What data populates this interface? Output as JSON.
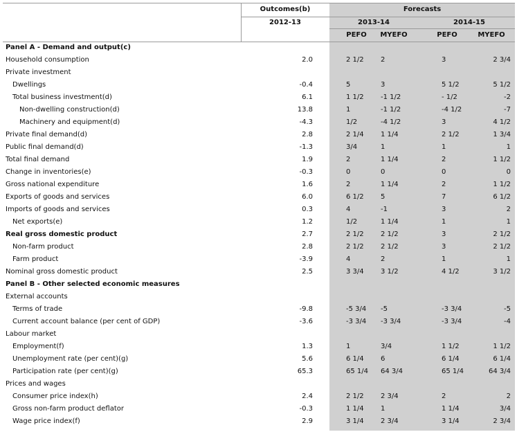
{
  "header": {
    "outcomes_label": "Outcomes(b)",
    "forecasts_label": "Forecasts",
    "year_outcome": "2012-13",
    "year_1": "2013-14",
    "year_2": "2014-15",
    "pefo": "PEFO",
    "myefo": "MYEFO"
  },
  "rows": [
    {
      "label": "Panel A - Demand and output(c)",
      "indent": 0,
      "bold": true,
      "outcome": "",
      "f13_pefo": "",
      "f13_myefo": "",
      "f14_pefo": "",
      "f14_myefo": ""
    },
    {
      "label": "Household consumption",
      "indent": 0,
      "bold": false,
      "outcome": "2.0",
      "f13_pefo": "2 1/2",
      "f13_myefo": "2",
      "f14_pefo": "3",
      "f14_myefo": "2 3/4"
    },
    {
      "label": "Private investment",
      "indent": 0,
      "bold": false,
      "outcome": "",
      "f13_pefo": "",
      "f13_myefo": "",
      "f14_pefo": "",
      "f14_myefo": ""
    },
    {
      "label": "Dwellings",
      "indent": 1,
      "bold": false,
      "outcome": "-0.4",
      "f13_pefo": "5",
      "f13_myefo": "3",
      "f14_pefo": "5 1/2",
      "f14_myefo": "5 1/2"
    },
    {
      "label": "Total business investment(d)",
      "indent": 1,
      "bold": false,
      "outcome": "6.1",
      "f13_pefo": "1 1/2",
      "f13_myefo": "-1 1/2",
      "f14_pefo": "- 1/2",
      "f14_myefo": "-2"
    },
    {
      "label": "Non-dwelling construction(d)",
      "indent": 2,
      "bold": false,
      "outcome": "13.8",
      "f13_pefo": "1",
      "f13_myefo": "-1 1/2",
      "f14_pefo": "-4 1/2",
      "f14_myefo": "-7"
    },
    {
      "label": "Machinery and equipment(d)",
      "indent": 2,
      "bold": false,
      "outcome": "-4.3",
      "f13_pefo": "1/2",
      "f13_myefo": "-4 1/2",
      "f14_pefo": "3",
      "f14_myefo": "4 1/2"
    },
    {
      "label": "Private final demand(d)",
      "indent": 0,
      "bold": false,
      "outcome": "2.8",
      "f13_pefo": "2 1/4",
      "f13_myefo": "1 1/4",
      "f14_pefo": "2 1/2",
      "f14_myefo": "1 3/4"
    },
    {
      "label": "Public final demand(d)",
      "indent": 0,
      "bold": false,
      "outcome": "-1.3",
      "f13_pefo": "3/4",
      "f13_myefo": "1",
      "f14_pefo": "1",
      "f14_myefo": "1"
    },
    {
      "label": "Total final demand",
      "indent": 0,
      "bold": false,
      "outcome": "1.9",
      "f13_pefo": "2",
      "f13_myefo": "1 1/4",
      "f14_pefo": "2",
      "f14_myefo": "1 1/2"
    },
    {
      "label": "Change in inventories(e)",
      "indent": 0,
      "bold": false,
      "outcome": "-0.3",
      "f13_pefo": "0",
      "f13_myefo": "0",
      "f14_pefo": "0",
      "f14_myefo": "0"
    },
    {
      "label": "Gross national expenditure",
      "indent": 0,
      "bold": false,
      "outcome": "1.6",
      "f13_pefo": "2",
      "f13_myefo": "1 1/4",
      "f14_pefo": "2",
      "f14_myefo": "1 1/2"
    },
    {
      "label": "Exports of goods and services",
      "indent": 0,
      "bold": false,
      "outcome": "6.0",
      "f13_pefo": "6 1/2",
      "f13_myefo": "5",
      "f14_pefo": "7",
      "f14_myefo": "6 1/2"
    },
    {
      "label": "Imports of goods and services",
      "indent": 0,
      "bold": false,
      "outcome": "0.3",
      "f13_pefo": "4",
      "f13_myefo": "-1",
      "f14_pefo": "3",
      "f14_myefo": "2"
    },
    {
      "label": "Net exports(e)",
      "indent": 1,
      "bold": false,
      "outcome": "1.2",
      "f13_pefo": "1/2",
      "f13_myefo": "1 1/4",
      "f14_pefo": "1",
      "f14_myefo": "1"
    },
    {
      "label": "Real gross domestic product",
      "indent": 0,
      "bold": true,
      "outcome": "2.7",
      "f13_pefo": "2 1/2",
      "f13_myefo": "2 1/2",
      "f14_pefo": "3",
      "f14_myefo": "2 1/2"
    },
    {
      "label": "Non-farm product",
      "indent": 1,
      "bold": false,
      "outcome": "2.8",
      "f13_pefo": "2 1/2",
      "f13_myefo": "2 1/2",
      "f14_pefo": "3",
      "f14_myefo": "2 1/2"
    },
    {
      "label": "Farm product",
      "indent": 1,
      "bold": false,
      "outcome": "-3.9",
      "f13_pefo": "4",
      "f13_myefo": "2",
      "f14_pefo": "1",
      "f14_myefo": "1"
    },
    {
      "label": "Nominal gross domestic product",
      "indent": 0,
      "bold": false,
      "outcome": "2.5",
      "f13_pefo": "3 3/4",
      "f13_myefo": "3 1/2",
      "f14_pefo": "4 1/2",
      "f14_myefo": "3 1/2"
    },
    {
      "label": "Panel B - Other selected economic measures",
      "indent": 0,
      "bold": true,
      "outcome": "",
      "f13_pefo": "",
      "f13_myefo": "",
      "f14_pefo": "",
      "f14_myefo": ""
    },
    {
      "label": "External accounts",
      "indent": 0,
      "bold": false,
      "outcome": "",
      "f13_pefo": "",
      "f13_myefo": "",
      "f14_pefo": "",
      "f14_myefo": ""
    },
    {
      "label": "Terms of trade",
      "indent": 1,
      "bold": false,
      "outcome": "-9.8",
      "f13_pefo": "-5 3/4",
      "f13_myefo": "-5",
      "f14_pefo": "-3 3/4",
      "f14_myefo": "-5"
    },
    {
      "label": "Current account balance (per cent of GDP)",
      "indent": 1,
      "bold": false,
      "outcome": "-3.6",
      "f13_pefo": "-3 3/4",
      "f13_myefo": "-3 3/4",
      "f14_pefo": "-3 3/4",
      "f14_myefo": "-4"
    },
    {
      "label": "Labour market",
      "indent": 0,
      "bold": false,
      "outcome": "",
      "f13_pefo": "",
      "f13_myefo": "",
      "f14_pefo": "",
      "f14_myefo": ""
    },
    {
      "label": "Employment(f)",
      "indent": 1,
      "bold": false,
      "outcome": "1.3",
      "f13_pefo": "1",
      "f13_myefo": "3/4",
      "f14_pefo": "1 1/2",
      "f14_myefo": "1 1/2"
    },
    {
      "label": "Unemployment rate (per cent)(g)",
      "indent": 1,
      "bold": false,
      "outcome": "5.6",
      "f13_pefo": "6 1/4",
      "f13_myefo": "6",
      "f14_pefo": "6 1/4",
      "f14_myefo": "6 1/4"
    },
    {
      "label": "Participation rate (per cent)(g)",
      "indent": 1,
      "bold": false,
      "outcome": "65.3",
      "f13_pefo": "65 1/4",
      "f13_myefo": "64 3/4",
      "f14_pefo": "65 1/4",
      "f14_myefo": "64 3/4"
    },
    {
      "label": "Prices and wages",
      "indent": 0,
      "bold": false,
      "outcome": "",
      "f13_pefo": "",
      "f13_myefo": "",
      "f14_pefo": "",
      "f14_myefo": ""
    },
    {
      "label": "Consumer price index(h)",
      "indent": 1,
      "bold": false,
      "outcome": "2.4",
      "f13_pefo": "2 1/2",
      "f13_myefo": "2 3/4",
      "f14_pefo": "2",
      "f14_myefo": "2"
    },
    {
      "label": "Gross non-farm product deflator",
      "indent": 1,
      "bold": false,
      "outcome": "-0.3",
      "f13_pefo": "1 1/4",
      "f13_myefo": "1",
      "f14_pefo": "1 1/4",
      "f14_myefo": "3/4"
    },
    {
      "label": "Wage price index(f)",
      "indent": 1,
      "bold": false,
      "outcome": "2.9",
      "f13_pefo": "3 1/4",
      "f13_myefo": "2 3/4",
      "f14_pefo": "3 1/4",
      "f14_myefo": "2 3/4"
    }
  ]
}
